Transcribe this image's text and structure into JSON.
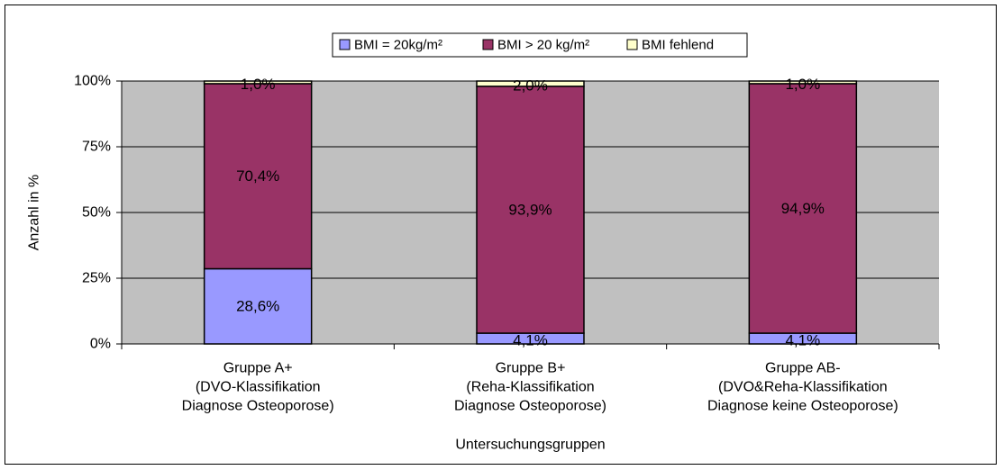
{
  "chart_data": {
    "type": "bar",
    "stacked": true,
    "percent": true,
    "categories": [
      [
        "Gruppe A+",
        "(DVO-Klassifikation",
        "Diagnose Osteoporose)"
      ],
      [
        "Gruppe B+",
        "(Reha-Klassifikation",
        "Diagnose Osteoporose)"
      ],
      [
        "Gruppe AB-",
        "(DVO&Reha-Klassifikation",
        "Diagnose keine Osteoporose)"
      ]
    ],
    "series": [
      {
        "name": "BMI = 20kg/m²",
        "color": "#9999ff",
        "values": [
          28.6,
          4.1,
          4.1
        ],
        "labels": [
          "28,6%",
          "4,1%",
          "4,1%"
        ]
      },
      {
        "name": "BMI > 20 kg/m²",
        "color": "#993366",
        "values": [
          70.4,
          93.9,
          94.9
        ],
        "labels": [
          "70,4%",
          "93,9%",
          "94,9%"
        ]
      },
      {
        "name": "BMI fehlend",
        "color": "#ffffcc",
        "values": [
          1.0,
          2.0,
          1.0
        ],
        "labels": [
          "1,0%",
          "2,0%",
          "1,0%"
        ]
      }
    ],
    "xlabel": "Untersuchungsgruppen",
    "ylabel": "Anzahl in %",
    "ylim": [
      0,
      100
    ],
    "yticks": [
      "0%",
      "25%",
      "50%",
      "75%",
      "100%"
    ],
    "plot_background": "#c0c0c0",
    "grid": true,
    "legend_position": "top"
  }
}
